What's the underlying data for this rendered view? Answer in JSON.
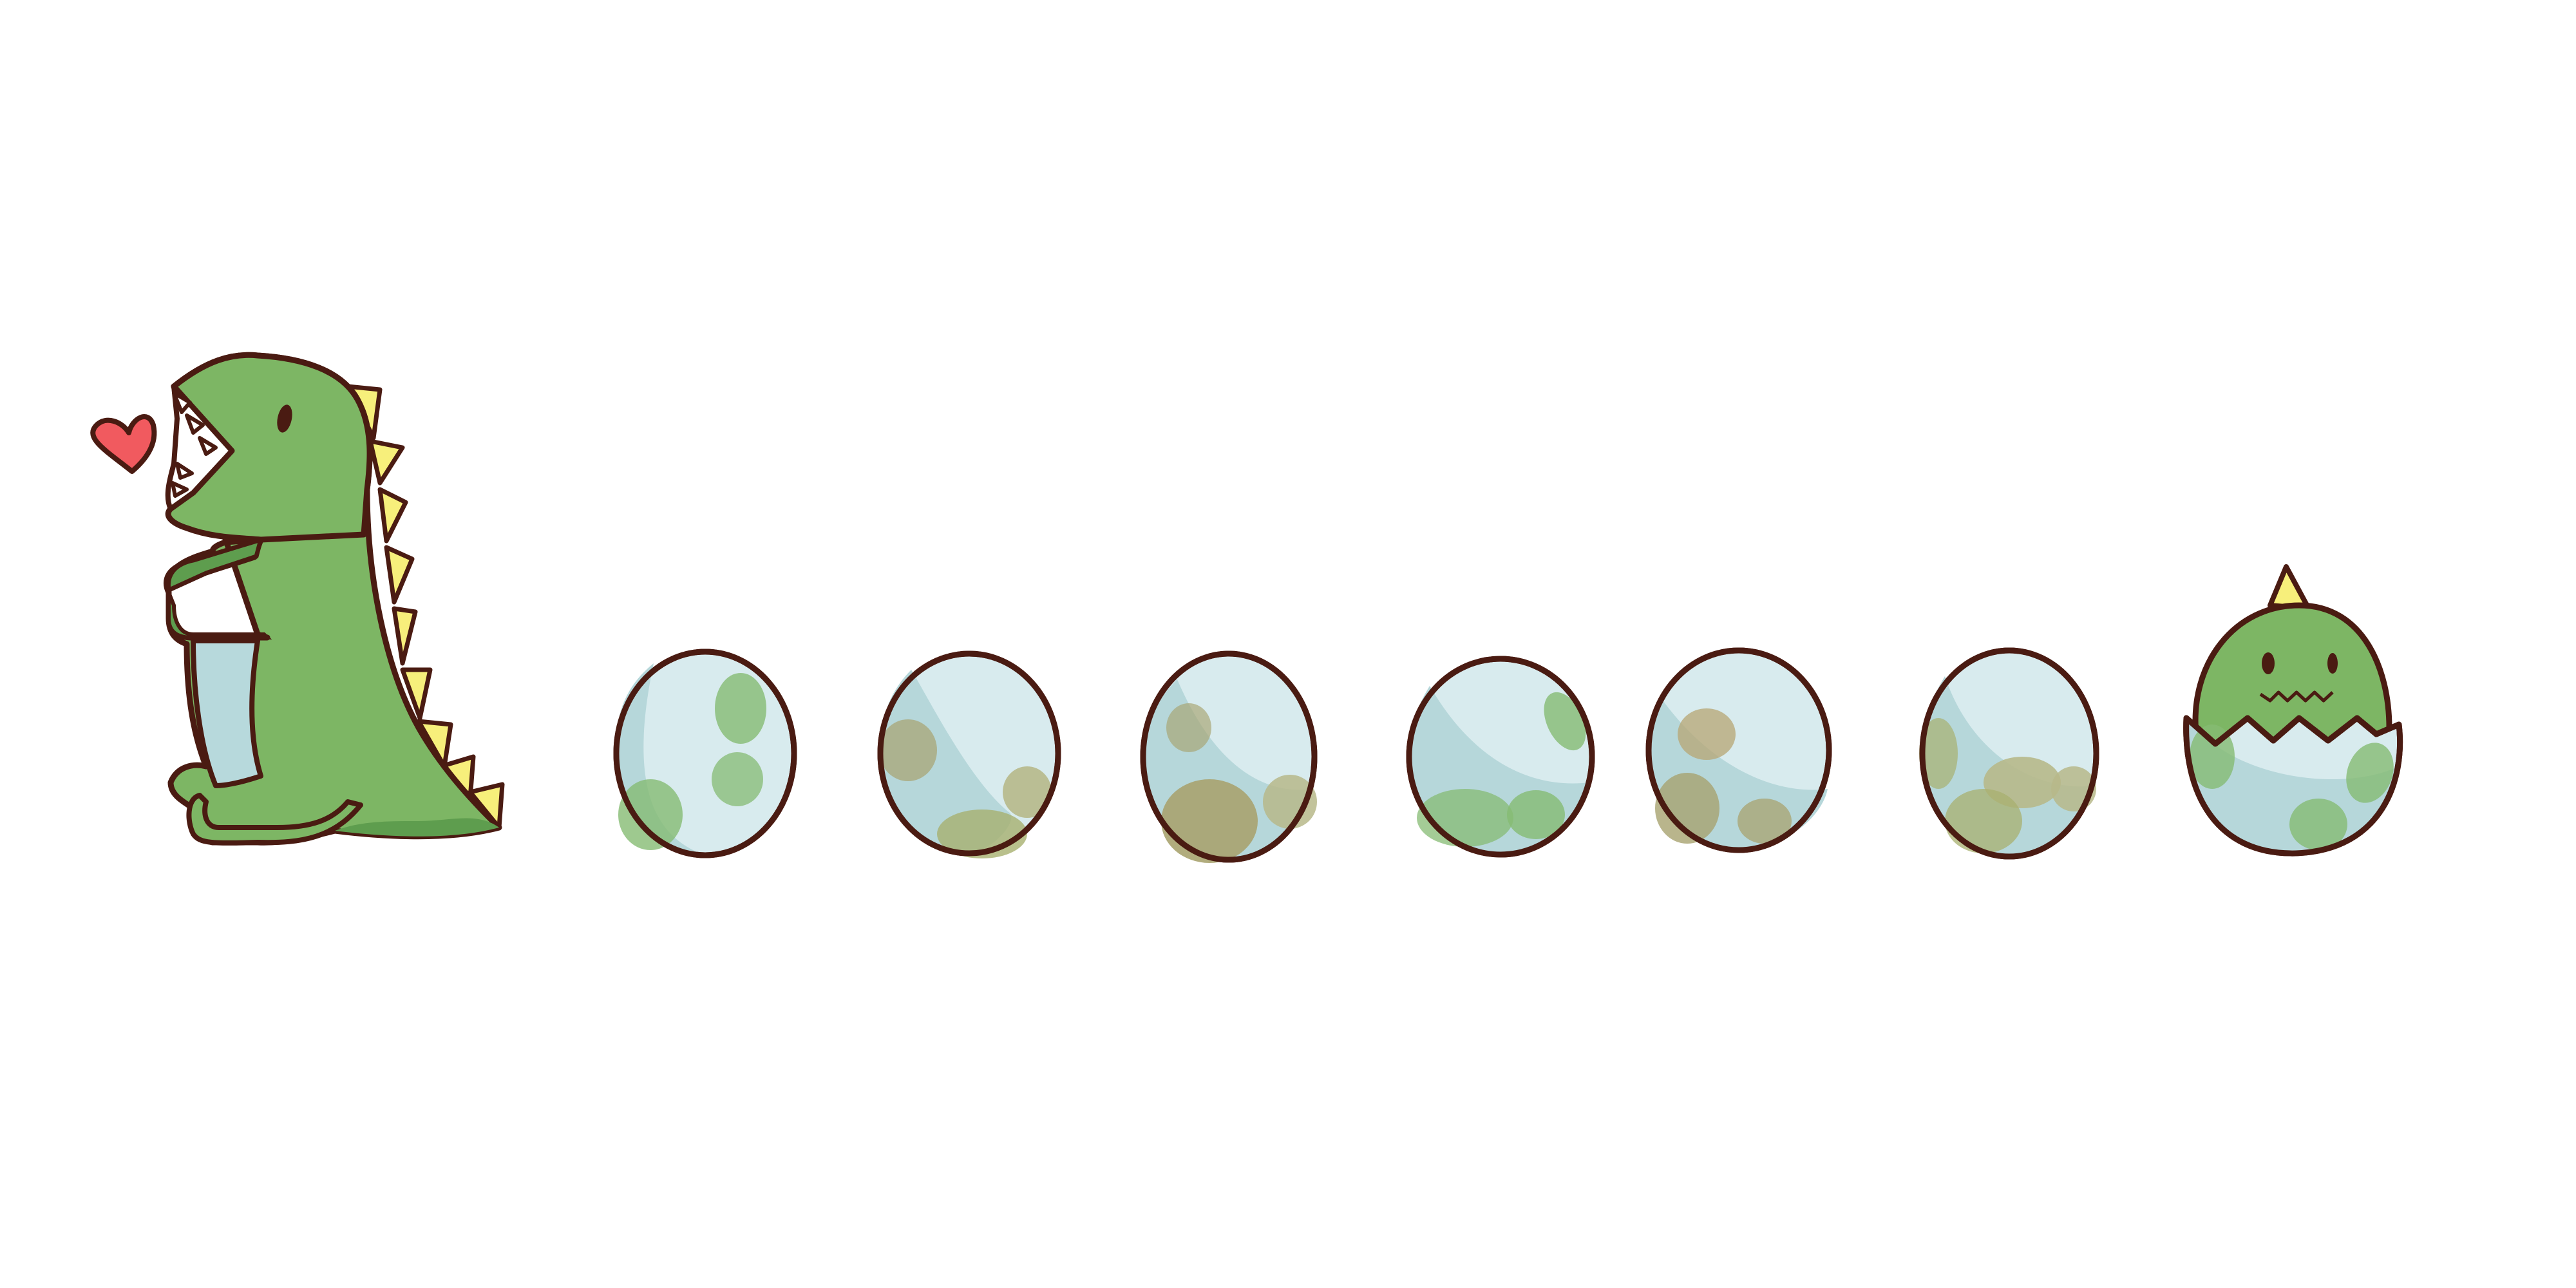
{
  "colors": {
    "background": "#ffffff",
    "outline": "#4a1b12",
    "dino_green": "#7db664",
    "dino_green_dark": "#5e9d4e",
    "belly_blue": "#b7d9dc",
    "spike_yellow": "#f7ef7b",
    "heart_red": "#f15a5f",
    "egg_shell": "#d8ebee",
    "egg_shade": "#b6d7da",
    "spot_green": "#86bb73",
    "spot_olive": "#a8a36f",
    "spot_tan": "#b7b98a"
  },
  "scene": {
    "figures": [
      "mother-dinosaur",
      "heart",
      "egg",
      "egg",
      "egg",
      "egg",
      "egg",
      "egg",
      "hatching-baby-dinosaur"
    ],
    "egg_count": 6
  }
}
